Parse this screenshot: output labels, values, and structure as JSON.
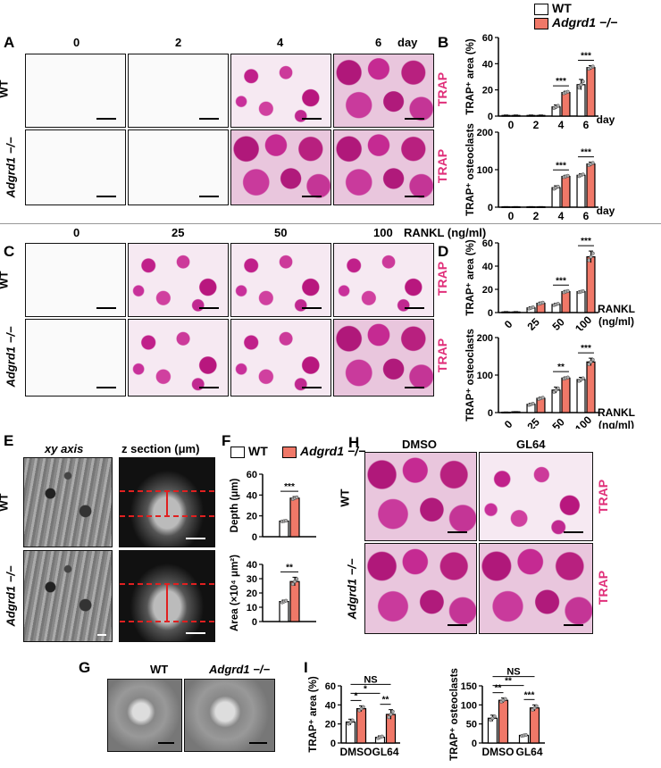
{
  "legend": {
    "wt": "WT",
    "ko": "Adgrd1 −/−"
  },
  "colors": {
    "wt": "#ffffff",
    "ko": "#f07868",
    "trap": "#e0307a",
    "bar_stroke": "#000000",
    "scatter": "#aaaaaa"
  },
  "panelA": {
    "label": "A",
    "cols": [
      "0",
      "2",
      "4",
      "6"
    ],
    "unit": "day",
    "rows": [
      "WT",
      "Adgrd1 −/−"
    ],
    "stain": "TRAP"
  },
  "panelC": {
    "label": "C",
    "cols": [
      "0",
      "25",
      "50",
      "100"
    ],
    "unit": "RANKL (ng/ml)",
    "rows": [
      "WT",
      "Adgrd1 −/−"
    ],
    "stain": "TRAP"
  },
  "panelE": {
    "label": "E",
    "col1": "xy axis",
    "col2": "z section (μm)",
    "rows": [
      "WT",
      "Adgrd1 −/−"
    ]
  },
  "panelG": {
    "label": "G",
    "cols": [
      "WT",
      "Adgrd1 −/−"
    ]
  },
  "panelH": {
    "label": "H",
    "cols": [
      "DMSO",
      "GL64"
    ],
    "rows": [
      "WT",
      "Adgrd1 −/−"
    ],
    "stain": "TRAP"
  },
  "panelB": {
    "label": "B"
  },
  "panelD": {
    "label": "D"
  },
  "panelF": {
    "label": "F"
  },
  "panelI": {
    "label": "I"
  },
  "chart_data": [
    {
      "id": "B1",
      "type": "bar",
      "ylabel": "TRAP⁺ area (%)",
      "xlabel_unit": "day",
      "categories": [
        "0",
        "2",
        "4",
        "6"
      ],
      "ylim": [
        0,
        60
      ],
      "yticks": [
        0,
        20,
        40,
        60
      ],
      "series": [
        {
          "name": "WT",
          "values": [
            0.5,
            0.5,
            7,
            24
          ],
          "err": [
            0.3,
            0.3,
            1.5,
            4
          ]
        },
        {
          "name": "Adgrd1 −/−",
          "values": [
            0.5,
            0.5,
            18,
            37
          ],
          "err": [
            0.3,
            0.3,
            1.0,
            1.5
          ]
        }
      ],
      "sig": [
        {
          "cat": 2,
          "text": "***"
        },
        {
          "cat": 3,
          "text": "***"
        }
      ]
    },
    {
      "id": "B2",
      "type": "bar",
      "ylabel": "TRAP⁺ osteoclasts",
      "xlabel_unit": "day",
      "categories": [
        "0",
        "2",
        "4",
        "6"
      ],
      "ylim": [
        0,
        200
      ],
      "yticks": [
        0,
        100,
        200
      ],
      "series": [
        {
          "name": "WT",
          "values": [
            1,
            1,
            52,
            85
          ],
          "err": [
            0.5,
            0.5,
            5,
            4
          ]
        },
        {
          "name": "Adgrd1 −/−",
          "values": [
            1,
            1,
            82,
            115
          ],
          "err": [
            0.5,
            0.5,
            3,
            5
          ]
        }
      ],
      "sig": [
        {
          "cat": 2,
          "text": "***"
        },
        {
          "cat": 3,
          "text": "***"
        }
      ]
    },
    {
      "id": "D1",
      "type": "bar",
      "ylabel": "TRAP⁺ area (%)",
      "xlabel_unit": "RANKL (ng/ml)",
      "categories": [
        "0",
        "25",
        "50",
        "100"
      ],
      "ylim": [
        0,
        60
      ],
      "yticks": [
        0,
        20,
        40,
        60
      ],
      "series": [
        {
          "name": "WT",
          "values": [
            0.5,
            4,
            7,
            18
          ],
          "err": [
            0.3,
            1,
            1,
            0.8
          ]
        },
        {
          "name": "Adgrd1 −/−",
          "values": [
            0.5,
            8,
            18,
            48
          ],
          "err": [
            0.3,
            1,
            1,
            5
          ]
        }
      ],
      "sig": [
        {
          "cat": 2,
          "text": "***"
        },
        {
          "cat": 3,
          "text": "***"
        }
      ]
    },
    {
      "id": "D2",
      "type": "bar",
      "ylabel": "TRAP⁺ osteoclasts",
      "xlabel_unit": "RANKL (ng/ml)",
      "categories": [
        "0",
        "25",
        "50",
        "100"
      ],
      "ylim": [
        0,
        200
      ],
      "yticks": [
        0,
        100,
        200
      ],
      "series": [
        {
          "name": "WT",
          "values": [
            1,
            22,
            60,
            88
          ],
          "err": [
            0.5,
            3,
            8,
            6
          ]
        },
        {
          "name": "Adgrd1 −/−",
          "values": [
            2,
            38,
            92,
            135
          ],
          "err": [
            0.5,
            3,
            3,
            10
          ]
        }
      ],
      "sig": [
        {
          "cat": 2,
          "text": "**"
        },
        {
          "cat": 3,
          "text": "***"
        }
      ]
    },
    {
      "id": "F1",
      "type": "bar",
      "ylabel": "Depth (μm)",
      "categories": [
        ""
      ],
      "ylim": [
        0,
        60
      ],
      "yticks": [
        0,
        20,
        40,
        60
      ],
      "series": [
        {
          "name": "WT",
          "values": [
            15
          ],
          "err": [
            0.5
          ]
        },
        {
          "name": "Adgrd1 −/−",
          "values": [
            37
          ],
          "err": [
            1.5
          ]
        }
      ],
      "sig": [
        {
          "cat": 0,
          "text": "***"
        }
      ]
    },
    {
      "id": "F2",
      "type": "bar",
      "ylabel": "Area (×10⁴ μm²)",
      "categories": [
        ""
      ],
      "ylim": [
        0,
        40
      ],
      "yticks": [
        0,
        10,
        20,
        30,
        40
      ],
      "series": [
        {
          "name": "WT",
          "values": [
            14
          ],
          "err": [
            1
          ]
        },
        {
          "name": "Adgrd1 −/−",
          "values": [
            28
          ],
          "err": [
            3
          ]
        }
      ],
      "sig": [
        {
          "cat": 0,
          "text": "**"
        }
      ]
    },
    {
      "id": "I1",
      "type": "bar",
      "ylabel": "TRAP⁺ area (%)",
      "categories": [
        "DMSO",
        "GL64"
      ],
      "ylim": [
        0,
        60
      ],
      "yticks": [
        0,
        20,
        40,
        60
      ],
      "series": [
        {
          "name": "WT",
          "values": [
            22,
            6
          ],
          "err": [
            3,
            1.5
          ]
        },
        {
          "name": "Adgrd1 −/−",
          "values": [
            36,
            30
          ],
          "err": [
            3,
            5
          ]
        }
      ],
      "brackets": [
        {
          "from": [
            0,
            0
          ],
          "to": [
            1,
            1
          ],
          "level": 3,
          "text": "NS"
        },
        {
          "from": [
            0,
            0
          ],
          "to": [
            1,
            0
          ],
          "level": 2,
          "text": "*"
        },
        {
          "from": [
            0,
            0
          ],
          "to": [
            0,
            1
          ],
          "level": 1,
          "text": "*"
        },
        {
          "from": [
            1,
            0
          ],
          "to": [
            1,
            1
          ],
          "level": 1,
          "text": "**"
        }
      ]
    },
    {
      "id": "I2",
      "type": "bar",
      "ylabel": "TRAP⁺ osteoclasts",
      "categories": [
        "DMSO",
        "GL64"
      ],
      "ylim": [
        0,
        150
      ],
      "yticks": [
        0,
        50,
        100,
        150
      ],
      "series": [
        {
          "name": "WT",
          "values": [
            65,
            20
          ],
          "err": [
            8,
            2
          ]
        },
        {
          "name": "Adgrd1 −/−",
          "values": [
            112,
            92
          ],
          "err": [
            6,
            8
          ]
        }
      ],
      "brackets": [
        {
          "from": [
            0,
            0
          ],
          "to": [
            1,
            1
          ],
          "level": 3,
          "text": "NS"
        },
        {
          "from": [
            0,
            0
          ],
          "to": [
            1,
            0
          ],
          "level": 2,
          "text": "**"
        },
        {
          "from": [
            0,
            0
          ],
          "to": [
            0,
            1
          ],
          "level": 1,
          "text": "**"
        },
        {
          "from": [
            1,
            0
          ],
          "to": [
            1,
            1
          ],
          "level": 1,
          "text": "***"
        }
      ]
    }
  ]
}
